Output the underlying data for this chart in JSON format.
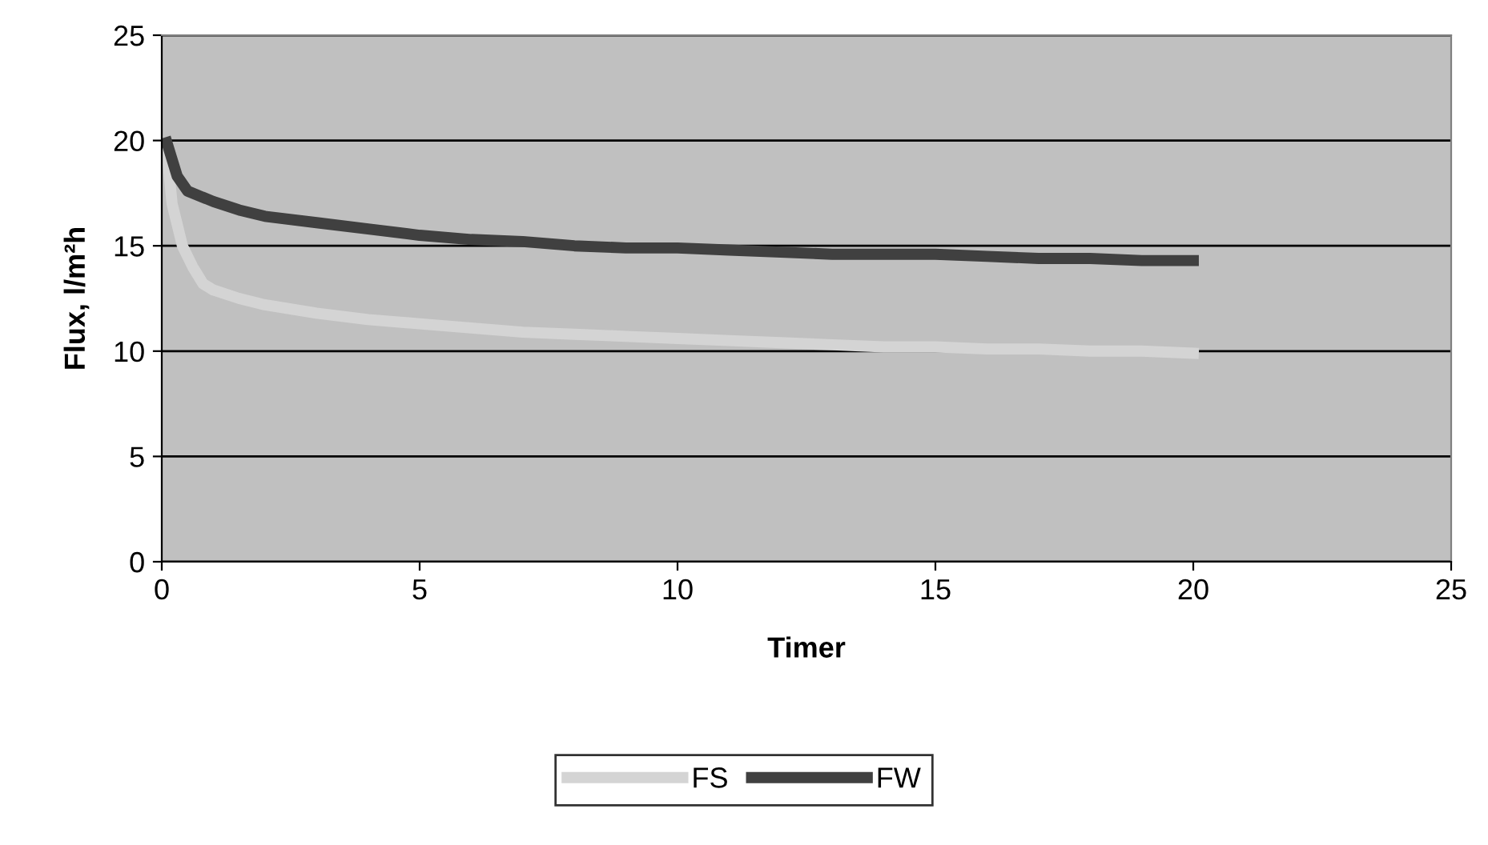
{
  "chart_data": {
    "type": "line",
    "xlabel": "Timer",
    "ylabel": "Flux, l/m²h",
    "series": [
      {
        "name": "FS",
        "color": "#d4d4d4",
        "x": [
          0.1,
          0.2,
          0.4,
          0.6,
          0.8,
          1,
          1.5,
          2,
          3,
          4,
          5,
          6,
          7,
          8,
          9,
          10,
          11,
          12,
          13,
          14,
          15,
          16,
          17,
          18,
          19,
          20
        ],
        "values": [
          19.5,
          17,
          15,
          14,
          13.2,
          12.9,
          12.5,
          12.2,
          11.8,
          11.5,
          11.3,
          11.1,
          10.9,
          10.8,
          10.7,
          10.6,
          10.5,
          10.4,
          10.3,
          10.2,
          10.2,
          10.1,
          10.1,
          10.0,
          10.0,
          9.9
        ]
      },
      {
        "name": "FW",
        "color": "#404040",
        "x": [
          0.1,
          0.3,
          0.5,
          1,
          1.5,
          2,
          3,
          4,
          5,
          6,
          7,
          8,
          9,
          10,
          11,
          12,
          13,
          14,
          15,
          16,
          17,
          18,
          19,
          20
        ],
        "values": [
          19.9,
          18.3,
          17.6,
          17.1,
          16.7,
          16.4,
          16.1,
          15.8,
          15.5,
          15.3,
          15.2,
          15.0,
          14.9,
          14.9,
          14.8,
          14.7,
          14.6,
          14.6,
          14.6,
          14.5,
          14.4,
          14.4,
          14.3,
          14.3
        ]
      }
    ],
    "xlim": [
      0,
      25
    ],
    "xticks": [
      0,
      5,
      10,
      15,
      20,
      25
    ],
    "ylim": [
      0,
      25
    ],
    "yticks": [
      0,
      5,
      10,
      15,
      20,
      25
    ],
    "grid": "y",
    "legend": "bottom",
    "marker": "none",
    "line_style": "solid"
  }
}
